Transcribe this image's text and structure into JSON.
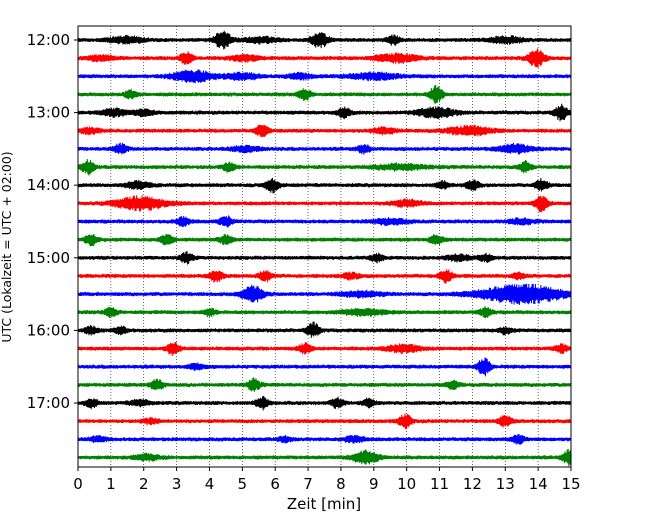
{
  "chart_data": {
    "type": "line",
    "subtype": "helicorder",
    "title": "",
    "xlabel": "Zeit  [min]",
    "ylabel": "UTC (Lokalzeit = UTC + 02:00)",
    "xlim": [
      0,
      15
    ],
    "x_ticks": [
      0,
      1,
      2,
      3,
      4,
      5,
      6,
      7,
      8,
      9,
      10,
      11,
      12,
      13,
      14,
      15
    ],
    "y_tick_labels": [
      "12:00",
      "13:00",
      "14:00",
      "15:00",
      "16:00",
      "17:00"
    ],
    "traces_per_hour": 4,
    "trace_minutes": 15,
    "grid": "vertical-dotted",
    "colors": [
      "#000000",
      "#ff0000",
      "#0000ff",
      "#008000"
    ],
    "traces": [
      {
        "start": "12:00",
        "color": "#000000",
        "events": [
          [
            1.45,
            0.35,
            0.8
          ],
          [
            4.4,
            0.9,
            0.4
          ],
          [
            5.6,
            0.3,
            0.8
          ],
          [
            7.35,
            0.8,
            0.4
          ],
          [
            9.6,
            0.5,
            0.3
          ],
          [
            13.0,
            0.35,
            0.8
          ]
        ]
      },
      {
        "start": "12:15",
        "color": "#ff0000",
        "events": [
          [
            0.7,
            0.3,
            0.6
          ],
          [
            3.3,
            0.6,
            0.3
          ],
          [
            5.1,
            0.3,
            0.7
          ],
          [
            9.7,
            0.45,
            1.0
          ],
          [
            13.95,
            0.9,
            0.4
          ]
        ]
      },
      {
        "start": "12:30",
        "color": "#0000ff",
        "events": [
          [
            3.5,
            0.6,
            1.0
          ],
          [
            5.0,
            0.35,
            0.8
          ],
          [
            6.75,
            0.3,
            0.6
          ],
          [
            9.0,
            0.35,
            1.2
          ]
        ]
      },
      {
        "start": "12:45",
        "color": "#008000",
        "events": [
          [
            1.6,
            0.4,
            0.3
          ],
          [
            6.9,
            0.55,
            0.3
          ],
          [
            10.9,
            0.9,
            0.3
          ]
        ]
      },
      {
        "start": "13:00",
        "color": "#000000",
        "events": [
          [
            1.1,
            0.4,
            0.6
          ],
          [
            2.0,
            0.3,
            0.5
          ],
          [
            8.1,
            0.55,
            0.3
          ],
          [
            10.9,
            0.55,
            0.9
          ],
          [
            14.7,
            0.8,
            0.3
          ]
        ]
      },
      {
        "start": "13:15",
        "color": "#ff0000",
        "events": [
          [
            0.35,
            0.3,
            0.5
          ],
          [
            5.6,
            0.6,
            0.3
          ],
          [
            9.3,
            0.3,
            0.6
          ],
          [
            11.9,
            0.5,
            1.0
          ]
        ]
      },
      {
        "start": "13:30",
        "color": "#0000ff",
        "events": [
          [
            1.3,
            0.55,
            0.3
          ],
          [
            5.1,
            0.3,
            0.7
          ],
          [
            8.7,
            0.45,
            0.3
          ],
          [
            13.3,
            0.45,
            0.8
          ]
        ]
      },
      {
        "start": "13:45",
        "color": "#008000",
        "events": [
          [
            0.3,
            0.75,
            0.3
          ],
          [
            4.6,
            0.5,
            0.3
          ],
          [
            9.8,
            0.3,
            1.2
          ],
          [
            13.6,
            0.55,
            0.3
          ]
        ]
      },
      {
        "start": "14:00",
        "color": "#000000",
        "events": [
          [
            1.85,
            0.4,
            0.6
          ],
          [
            5.9,
            0.8,
            0.3
          ],
          [
            11.1,
            0.4,
            0.3
          ],
          [
            12.0,
            0.55,
            0.3
          ],
          [
            14.1,
            0.6,
            0.3
          ]
        ]
      },
      {
        "start": "14:15",
        "color": "#ff0000",
        "events": [
          [
            1.9,
            0.7,
            1.2
          ],
          [
            10.0,
            0.35,
            0.7
          ],
          [
            14.1,
            0.8,
            0.3
          ]
        ]
      },
      {
        "start": "14:30",
        "color": "#0000ff",
        "events": [
          [
            3.2,
            0.45,
            0.3
          ],
          [
            4.5,
            0.55,
            0.3
          ],
          [
            9.5,
            0.3,
            0.8
          ],
          [
            13.5,
            0.3,
            0.6
          ]
        ]
      },
      {
        "start": "14:45",
        "color": "#008000",
        "events": [
          [
            0.4,
            0.55,
            0.3
          ],
          [
            2.7,
            0.5,
            0.3
          ],
          [
            4.5,
            0.5,
            0.3
          ],
          [
            10.9,
            0.55,
            0.3
          ]
        ]
      },
      {
        "start": "15:00",
        "color": "#000000",
        "events": [
          [
            3.3,
            0.55,
            0.3
          ],
          [
            9.1,
            0.4,
            0.3
          ],
          [
            11.6,
            0.3,
            0.6
          ],
          [
            12.4,
            0.4,
            0.3
          ]
        ]
      },
      {
        "start": "15:15",
        "color": "#ff0000",
        "events": [
          [
            4.2,
            0.6,
            0.3
          ],
          [
            5.7,
            0.55,
            0.3
          ],
          [
            8.3,
            0.3,
            0.4
          ],
          [
            11.2,
            0.7,
            0.3
          ],
          [
            13.4,
            0.35,
            0.3
          ]
        ]
      },
      {
        "start": "15:30",
        "color": "#0000ff",
        "events": [
          [
            5.3,
            0.9,
            0.5
          ],
          [
            8.6,
            0.3,
            1.0
          ],
          [
            13.5,
            1.0,
            2.0
          ]
        ]
      },
      {
        "start": "15:45",
        "color": "#008000",
        "events": [
          [
            1.0,
            0.45,
            0.3
          ],
          [
            4.0,
            0.4,
            0.3
          ],
          [
            8.7,
            0.35,
            1.0
          ],
          [
            12.4,
            0.45,
            0.3
          ]
        ]
      },
      {
        "start": "16:00",
        "color": "#000000",
        "events": [
          [
            0.4,
            0.4,
            0.3
          ],
          [
            1.3,
            0.35,
            0.3
          ],
          [
            7.15,
            0.75,
            0.3
          ],
          [
            13.0,
            0.35,
            0.3
          ]
        ]
      },
      {
        "start": "16:15",
        "color": "#ff0000",
        "events": [
          [
            2.9,
            0.7,
            0.3
          ],
          [
            6.9,
            0.5,
            0.3
          ],
          [
            9.9,
            0.4,
            0.8
          ],
          [
            14.7,
            0.45,
            0.3
          ]
        ]
      },
      {
        "start": "16:30",
        "color": "#0000ff",
        "events": [
          [
            3.6,
            0.3,
            0.4
          ],
          [
            12.35,
            0.9,
            0.3
          ]
        ]
      },
      {
        "start": "16:45",
        "color": "#008000",
        "events": [
          [
            2.4,
            0.55,
            0.3
          ],
          [
            5.35,
            0.6,
            0.3
          ],
          [
            11.4,
            0.5,
            0.3
          ]
        ]
      },
      {
        "start": "17:00",
        "color": "#000000",
        "events": [
          [
            0.4,
            0.45,
            0.3
          ],
          [
            1.9,
            0.3,
            0.5
          ],
          [
            5.6,
            0.65,
            0.3
          ],
          [
            7.9,
            0.55,
            0.3
          ],
          [
            8.85,
            0.4,
            0.3
          ]
        ]
      },
      {
        "start": "17:15",
        "color": "#ff0000",
        "events": [
          [
            2.2,
            0.25,
            0.4
          ],
          [
            9.95,
            0.7,
            0.3
          ],
          [
            13.0,
            0.55,
            0.3
          ]
        ]
      },
      {
        "start": "17:30",
        "color": "#0000ff",
        "events": [
          [
            0.6,
            0.3,
            0.4
          ],
          [
            6.3,
            0.3,
            0.3
          ],
          [
            8.4,
            0.3,
            0.5
          ],
          [
            13.4,
            0.45,
            0.3
          ]
        ]
      },
      {
        "start": "17:45",
        "color": "#008000",
        "events": [
          [
            2.1,
            0.3,
            0.6
          ],
          [
            8.75,
            0.7,
            0.6
          ],
          [
            14.95,
            0.8,
            0.3
          ]
        ]
      }
    ]
  }
}
